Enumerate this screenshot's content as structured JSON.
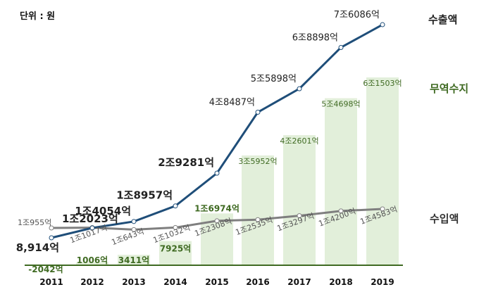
{
  "chart_data": {
    "type": "bar+line",
    "unit_label": "단위 : 원",
    "categories": [
      "2011",
      "2012",
      "2013",
      "2014",
      "2015",
      "2016",
      "2017",
      "2018",
      "2019"
    ],
    "series": [
      {
        "name": "수출액",
        "type": "line",
        "color": "#1f4e79",
        "values": [
          8914,
          12023,
          14054,
          18957,
          29281,
          48487,
          55898,
          68898,
          76086
        ],
        "labels": [
          "8,914억",
          "1조2023억",
          "1조4054억",
          "1조8957억",
          "2조9281억",
          "4조8487억",
          "5조5898억",
          "6조8898억",
          "7조6086억"
        ]
      },
      {
        "name": "무역수지",
        "type": "bar",
        "color": "#e2efda",
        "label_color": "#3f6a22",
        "values": [
          -2042,
          1006,
          3411,
          7925,
          16974,
          35952,
          42601,
          54698,
          61503
        ],
        "labels": [
          "-2042억",
          "1006억",
          "3411억",
          "7925억",
          "1조6974억",
          "3조5952억",
          "4조2601억",
          "5조4698억",
          "6조1503억"
        ]
      },
      {
        "name": "수입액",
        "type": "line",
        "color": "#7f7f7f",
        "values": [
          10955,
          11017,
          10643,
          11032,
          12308,
          12535,
          13297,
          14200,
          14583
        ],
        "labels": [
          "1조955억",
          "1조1017억",
          "1조643억",
          "1조1032억",
          "1조2308억",
          "1조2535억",
          "1조3297억",
          "1조4200억",
          "1조4583억"
        ]
      }
    ],
    "value_unit": "억 원",
    "grid": false,
    "legend": "right"
  }
}
